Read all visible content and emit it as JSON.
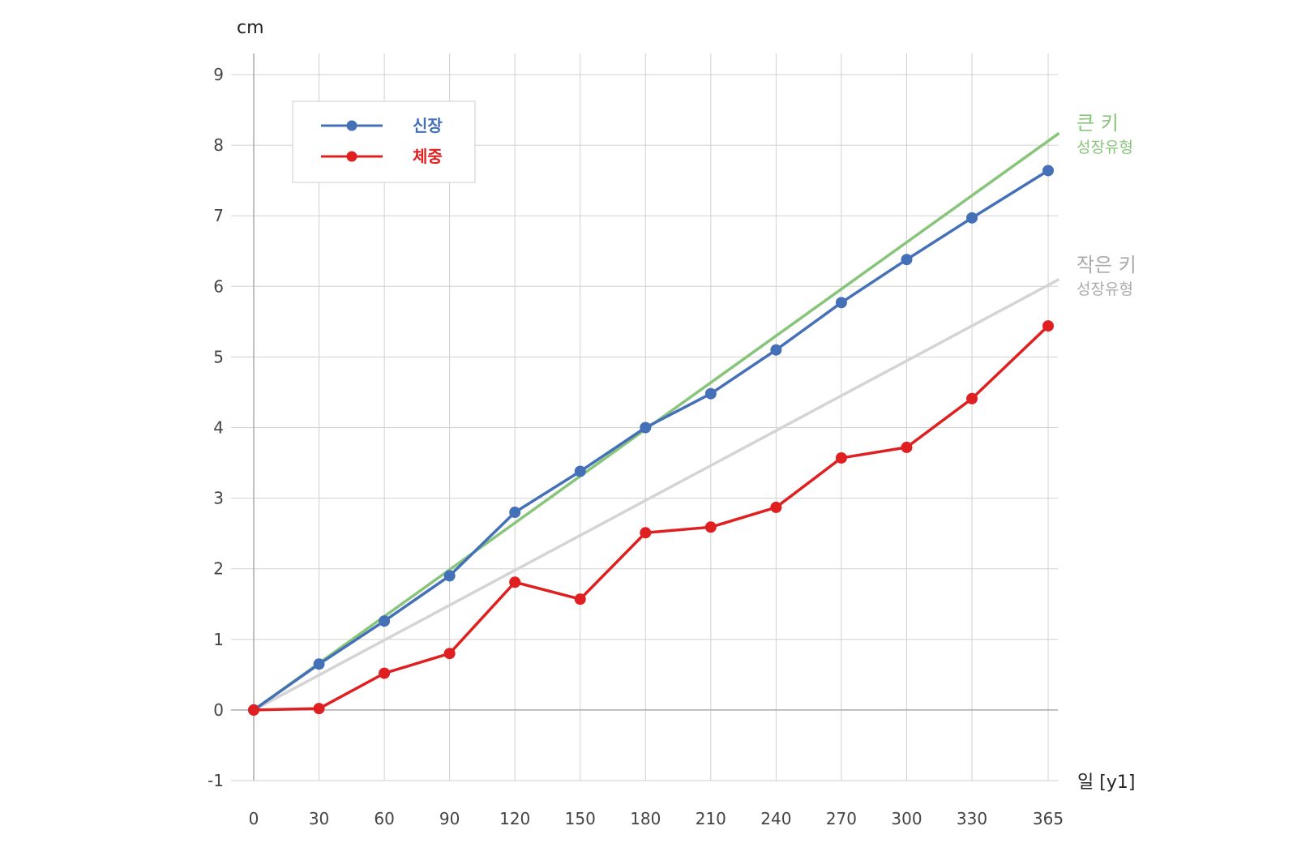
{
  "chart_data": {
    "type": "line",
    "ylabel": "cm",
    "xlabel": "일 [y1]",
    "x": [
      0,
      30,
      60,
      90,
      120,
      150,
      180,
      210,
      240,
      270,
      300,
      330,
      365
    ],
    "xticks": [
      "0",
      "30",
      "60",
      "90",
      "120",
      "150",
      "180",
      "210",
      "240",
      "270",
      "300",
      "330",
      "365"
    ],
    "yticks": [
      "-1",
      "0",
      "1",
      "2",
      "3",
      "4",
      "5",
      "6",
      "7",
      "8",
      "9"
    ],
    "ylim": [
      -1,
      9
    ],
    "grid": true,
    "legend_position": "top-left",
    "series": [
      {
        "name": "신장",
        "color": "#4470b8",
        "marker": "circle",
        "values": [
          0,
          0.65,
          1.26,
          1.9,
          2.8,
          3.38,
          4.0,
          4.48,
          5.1,
          5.77,
          6.38,
          6.97,
          7.64
        ]
      },
      {
        "name": "체중",
        "color": "#e02020",
        "marker": "circle",
        "values": [
          0,
          0.02,
          0.52,
          0.8,
          1.81,
          1.57,
          2.51,
          2.59,
          2.87,
          3.57,
          3.72,
          4.41,
          5.44
        ]
      }
    ],
    "reference_lines": [
      {
        "label": "큰 키",
        "sublabel": "성장유형",
        "color": "#88c57a",
        "points": [
          [
            0,
            0
          ],
          [
            370,
            8.17
          ]
        ]
      },
      {
        "label": "작은 키",
        "sublabel": "성장유형",
        "color": "#d4d4d4",
        "points": [
          [
            0,
            0
          ],
          [
            370,
            6.1
          ]
        ]
      }
    ]
  }
}
